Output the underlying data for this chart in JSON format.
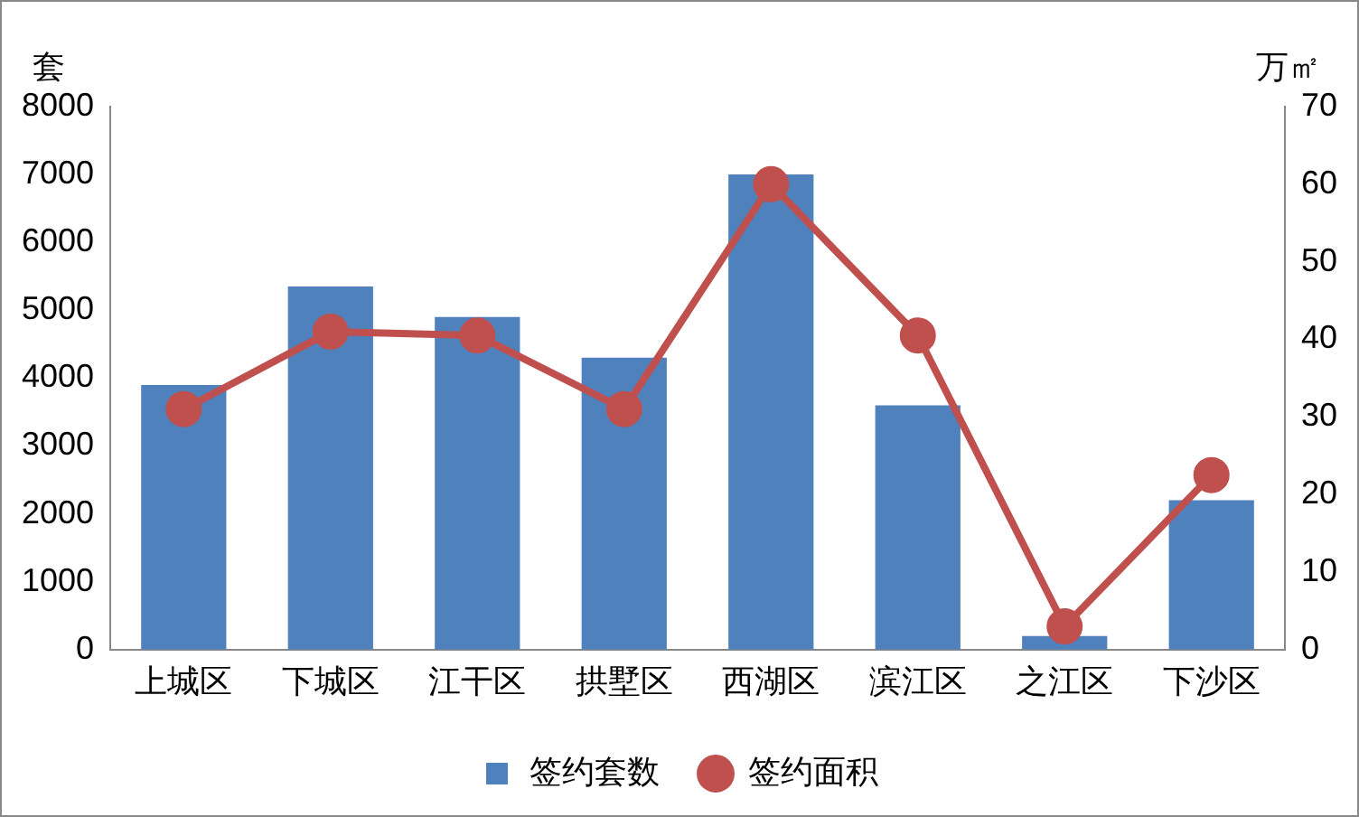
{
  "chart_data": {
    "type": "bar",
    "ylabel": "套",
    "y2label": "万㎡",
    "categories": [
      "上城区",
      "下城区",
      "江干区",
      "拱墅区",
      "西湖区",
      "滨江区",
      "之江区",
      "下沙区"
    ],
    "series": [
      {
        "name": "签约套数",
        "color": "#4f81bd",
        "values": [
          3900,
          5350,
          4900,
          4300,
          7000,
          3600,
          200,
          2200
        ]
      },
      {
        "name": "签约面积",
        "type": "line",
        "axis": "y2",
        "color": "#c0504d",
        "marker": "circle",
        "values": [
          31,
          41,
          40.5,
          31,
          60,
          40.5,
          3,
          22.5
        ]
      }
    ],
    "ylim": [
      0,
      8000
    ],
    "yticks": [
      0,
      1000,
      2000,
      3000,
      4000,
      5000,
      6000,
      7000,
      8000
    ],
    "y2lim": [
      0,
      70
    ],
    "y2ticks": [
      0,
      10,
      20,
      30,
      40,
      50,
      60,
      70
    ],
    "grid": false,
    "legend": "bottom"
  }
}
